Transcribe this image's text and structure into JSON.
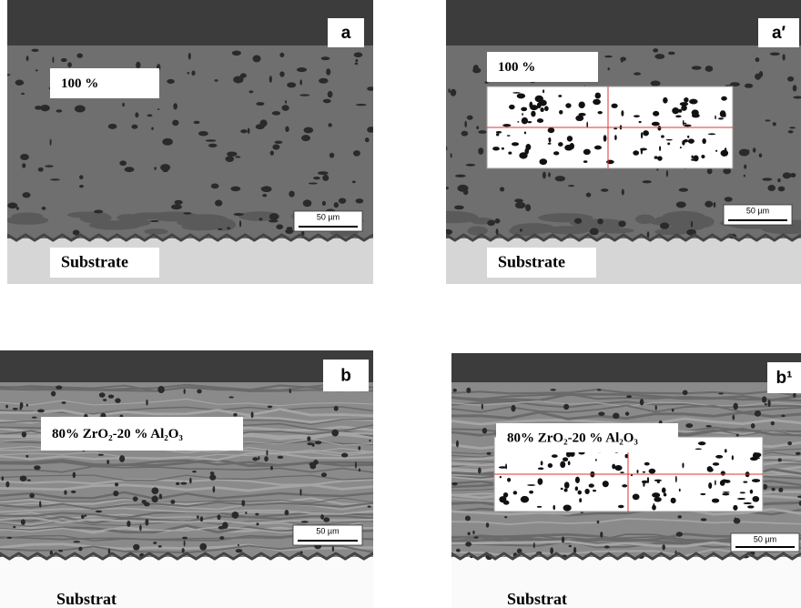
{
  "panels": [
    {
      "label": "a",
      "composition": "100 %",
      "scale_bar": "50 µm",
      "substrate": "Substrate"
    },
    {
      "label": "a′",
      "composition": "100 %",
      "scale_bar": "50 µm",
      "substrate": "Substrate"
    },
    {
      "label": "b",
      "composition": "80% ZrO₂-20 % Al₂O₃",
      "scale_bar": "50 µm",
      "substrate": "Substrat"
    },
    {
      "label": "b¹",
      "composition": "80% ZrO₂-20 % Al₂O₃",
      "scale_bar": "50 µm",
      "substrate": "Substrat"
    }
  ]
}
